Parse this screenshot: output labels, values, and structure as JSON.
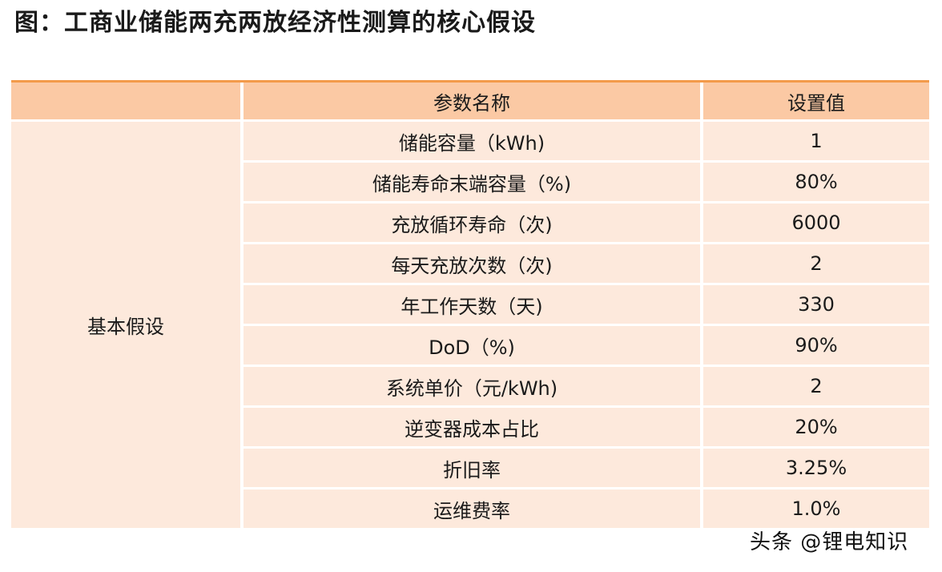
{
  "title": "图：工商业储能两充两放经济性测算的核心假设",
  "table": {
    "headers": [
      "",
      "参数名称",
      "设置值"
    ],
    "category": "基本假设",
    "rows": [
      {
        "name": "储能容量（kWh)",
        "value": "1"
      },
      {
        "name": "储能寿命末端容量（%)",
        "value": "80%"
      },
      {
        "name": "充放循环寿命（次)",
        "value": "6000"
      },
      {
        "name": "每天充放次数（次)",
        "value": "2"
      },
      {
        "name": "年工作天数（天)",
        "value": "330"
      },
      {
        "name": "DoD（%)",
        "value": "90%"
      },
      {
        "name": "系统单价（元/kWh)",
        "value": "2"
      },
      {
        "name": "逆变器成本占比",
        "value": "20%"
      },
      {
        "name": "折旧率",
        "value": "3.25%"
      },
      {
        "name": "运维费率",
        "value": "1.0%"
      }
    ]
  },
  "watermark": "头条 @锂电知识",
  "colors": {
    "header_bg": "#fbc9a4",
    "cell_bg": "#fde9dc",
    "rule": "#f39a4a"
  }
}
